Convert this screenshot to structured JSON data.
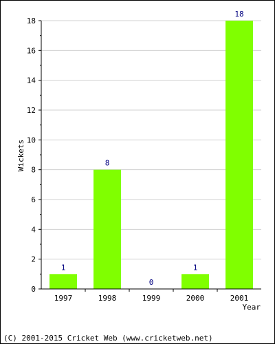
{
  "chart_data": {
    "type": "bar",
    "categories": [
      "1997",
      "1998",
      "1999",
      "2000",
      "2001"
    ],
    "values": [
      1,
      8,
      0,
      1,
      18
    ],
    "data_labels": [
      "1",
      "8",
      "0",
      "1",
      "18"
    ],
    "xlabel": "Year",
    "ylabel": "Wickets",
    "ylim": [
      0,
      18
    ],
    "yticks": [
      0,
      2,
      4,
      6,
      8,
      10,
      12,
      14,
      16,
      18
    ],
    "grid": true,
    "bar_color": "#80ff00",
    "grid_color": "#d0d0d0",
    "label_color": "#000080"
  },
  "footer": {
    "copyright": "(C) 2001-2015 Cricket Web (www.cricketweb.net)"
  }
}
